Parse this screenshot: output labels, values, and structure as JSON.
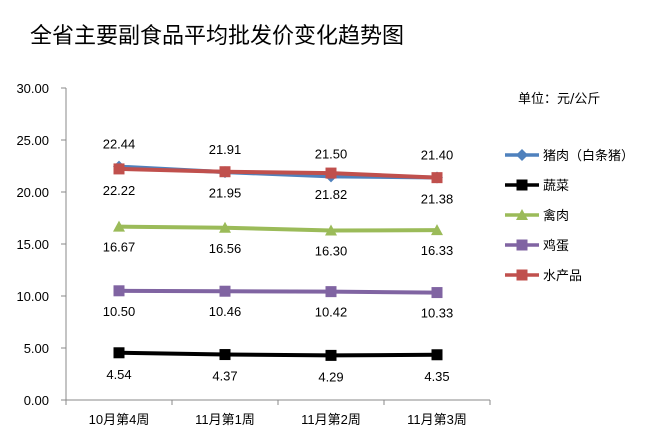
{
  "chart_data": {
    "type": "line",
    "title": "全省主要副食品平均批发价变化趋势图",
    "unit_label": "单位：元/公斤",
    "categories": [
      "10月第4周",
      "11月第1周",
      "11月第2周",
      "11月第3周"
    ],
    "ylim": [
      0,
      30
    ],
    "ytick_labels": [
      "0.00",
      "5.00",
      "10.00",
      "15.00",
      "20.00",
      "25.00",
      "30.00"
    ],
    "grid": false,
    "legend_position": "right",
    "series": [
      {
        "name": "猪肉（白条猪）",
        "values": [
          22.44,
          21.91,
          21.5,
          21.4
        ],
        "labels": [
          "22.44",
          "21.91",
          "21.50",
          "21.40"
        ],
        "color": "#4F81BD",
        "marker": "diamond"
      },
      {
        "name": "蔬菜",
        "values": [
          4.54,
          4.37,
          4.29,
          4.35
        ],
        "labels": [
          "4.54",
          "4.37",
          "4.29",
          "4.35"
        ],
        "color": "#000000",
        "marker": "square"
      },
      {
        "name": "禽肉",
        "values": [
          16.67,
          16.56,
          16.3,
          16.33
        ],
        "labels": [
          "16.67",
          "16.56",
          "16.30",
          "16.33"
        ],
        "color": "#9BBB59",
        "marker": "triangle"
      },
      {
        "name": "鸡蛋",
        "values": [
          10.5,
          10.46,
          10.42,
          10.33
        ],
        "labels": [
          "10.50",
          "10.46",
          "10.42",
          "10.33"
        ],
        "color": "#8064A2",
        "marker": "square"
      },
      {
        "name": "水产品",
        "values": [
          22.22,
          21.95,
          21.82,
          21.38
        ],
        "labels": [
          "22.22",
          "21.95",
          "21.82",
          "21.38"
        ],
        "color": "#C0504D",
        "marker": "square"
      }
    ]
  }
}
